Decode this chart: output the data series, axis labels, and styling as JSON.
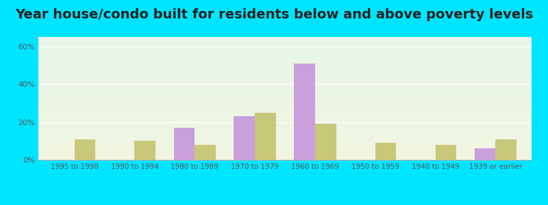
{
  "title": "Year house/condo built for residents below and above poverty levels",
  "categories": [
    "1995 to 1998",
    "1990 to 1994",
    "1980 to 1989",
    "1970 to 1979",
    "1960 to 1969",
    "1950 to 1959",
    "1940 to 1949",
    "1939 or earlier"
  ],
  "below_poverty": [
    0,
    0,
    17,
    23,
    51,
    0,
    0,
    6
  ],
  "above_poverty": [
    11,
    10,
    8,
    25,
    19,
    9,
    8,
    11
  ],
  "below_color": "#c9a0dc",
  "above_color": "#c8c87a",
  "background_outer": "#00e5ff",
  "ylim": [
    0,
    65
  ],
  "yticks": [
    0,
    20,
    40,
    60
  ],
  "ytick_labels": [
    "0%",
    "20%",
    "40%",
    "60%"
  ],
  "title_fontsize": 14,
  "bar_width": 0.35
}
